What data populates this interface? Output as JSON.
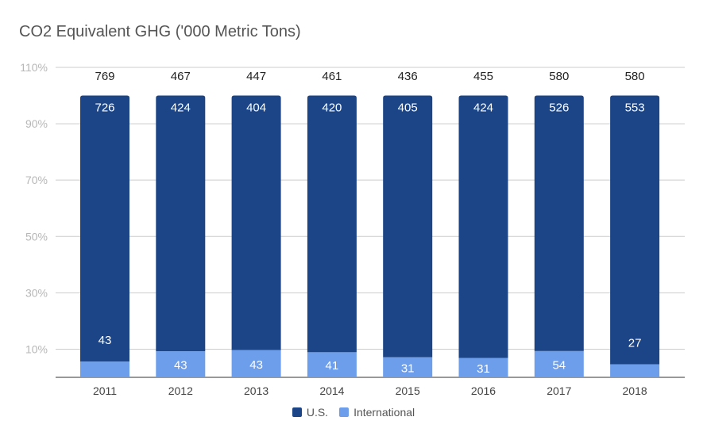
{
  "chart_data": {
    "type": "bar",
    "stacked": true,
    "normalized": true,
    "title": "CO2 Equivalent GHG ('000 Metric Tons)",
    "xlabel": "",
    "ylabel": "",
    "categories": [
      "2011",
      "2012",
      "2013",
      "2014",
      "2015",
      "2016",
      "2017",
      "2018"
    ],
    "series": [
      {
        "name": "U.S.",
        "color": "#1c4587",
        "values": [
          726,
          424,
          404,
          420,
          405,
          424,
          526,
          553
        ]
      },
      {
        "name": "International",
        "color": "#6d9eeb",
        "values": [
          43,
          43,
          43,
          41,
          31,
          31,
          54,
          27
        ]
      }
    ],
    "totals": [
      769,
      467,
      447,
      461,
      436,
      455,
      580,
      580
    ],
    "yticks": [
      "10%",
      "30%",
      "50%",
      "70%",
      "90%",
      "110%"
    ],
    "ylim": [
      0,
      1.1
    ],
    "grid": true,
    "legend_position": "bottom"
  }
}
